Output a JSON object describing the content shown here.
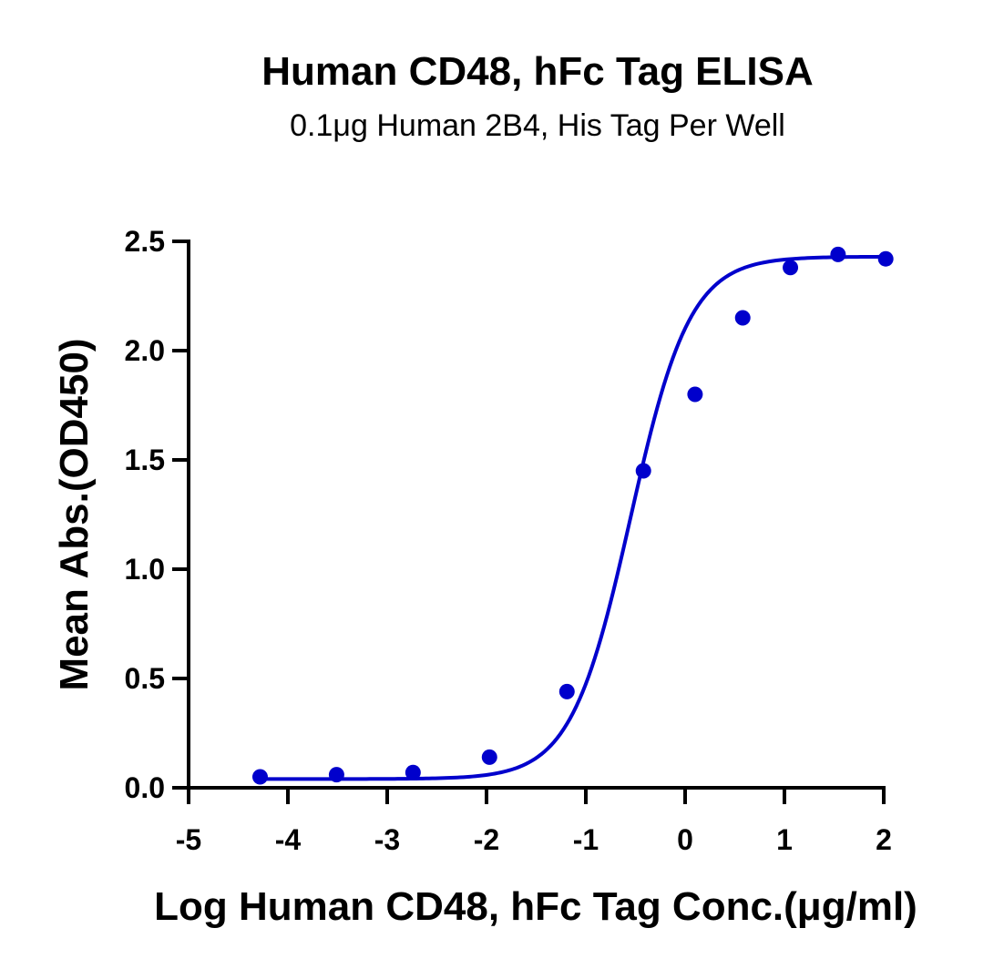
{
  "chart_data": {
    "type": "scatter",
    "title": "Human CD48, hFc Tag ELISA",
    "subtitle": "0.1μg Human 2B4, His Tag Per Well",
    "xlabel": "Log Human CD48, hFc Tag Conc.(μg/ml)",
    "ylabel": "Mean Abs.(OD450)",
    "xlim": [
      -5,
      2
    ],
    "ylim": [
      0,
      2.5
    ],
    "x_ticks": [
      -5,
      -4,
      -3,
      -2,
      -1,
      0,
      1,
      2
    ],
    "x_tick_labels": [
      "-5",
      "-4",
      "-3",
      "-2",
      "-1",
      "0",
      "1",
      "2"
    ],
    "y_ticks": [
      0,
      0.5,
      1.0,
      1.5,
      2.0,
      2.5
    ],
    "y_tick_labels": [
      "0.0",
      "0.5",
      "1.0",
      "1.5",
      "2.0",
      "2.5"
    ],
    "grid": false,
    "color": "#0000cc",
    "points": {
      "x": [
        -4.28,
        -3.51,
        -2.74,
        -1.97,
        -1.19,
        -0.42,
        0.1,
        0.58,
        1.06,
        1.54,
        2.02
      ],
      "y": [
        0.05,
        0.06,
        0.07,
        0.14,
        0.44,
        1.45,
        1.8,
        2.15,
        2.38,
        2.44,
        2.42
      ]
    },
    "fit": {
      "model": "4PL",
      "bottom": 0.04,
      "top": 2.43,
      "log_ec50": -0.55,
      "hill": 1.45
    }
  }
}
